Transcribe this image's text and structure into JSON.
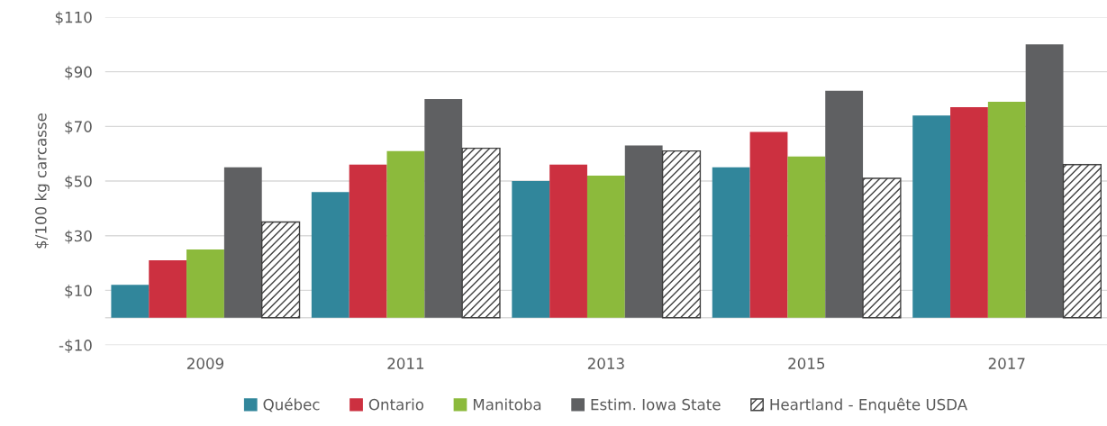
{
  "chart_data": {
    "type": "bar",
    "ylabel": "$/100 kg carcasse",
    "categories": [
      "2009",
      "2011",
      "2013",
      "2015",
      "2017"
    ],
    "series": [
      {
        "name": "Québec",
        "color": "#31869b",
        "values": [
          12,
          46,
          50,
          55,
          74
        ]
      },
      {
        "name": "Ontario",
        "color": "#cc3040",
        "values": [
          21,
          56,
          56,
          68,
          77
        ]
      },
      {
        "name": "Manitoba",
        "color": "#8cba3c",
        "values": [
          25,
          61,
          52,
          59,
          79
        ]
      },
      {
        "name": "Estim. Iowa State",
        "color": "#5f6062",
        "values": [
          55,
          80,
          63,
          83,
          100
        ]
      },
      {
        "name": "Heartland - Enquête USDA",
        "color": "#404040",
        "values": [
          35,
          62,
          61,
          51,
          56
        ]
      }
    ],
    "ylim": [
      -10,
      110
    ],
    "yticks": [
      {
        "value": -10,
        "label": "-$10"
      },
      {
        "value": 10,
        "label": "$10"
      },
      {
        "value": 30,
        "label": "$30"
      },
      {
        "value": 50,
        "label": "$50"
      },
      {
        "value": 70,
        "label": "$70"
      },
      {
        "value": 90,
        "label": "$90"
      },
      {
        "value": 110,
        "label": "$110"
      }
    ],
    "grid": "y",
    "legend": "bottom"
  }
}
